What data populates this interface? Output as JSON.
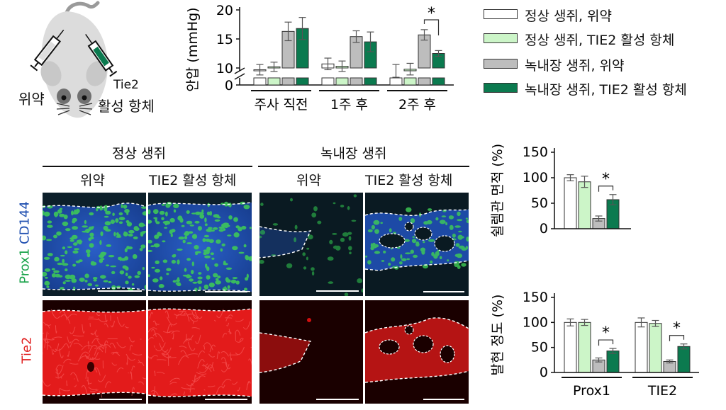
{
  "colors": {
    "placebo_normal": "#ffffff",
    "tie2_normal": "#ccf5c8",
    "placebo_glaucoma": "#bdbdbd",
    "tie2_glaucoma": "#0b7a4f",
    "prox1_green": "#19a34a",
    "cd144_blue": "#1f4fb0",
    "tie2_red": "#e01e1e"
  },
  "mouse_illustration": {
    "left_label": "위약",
    "right_label_line1": "Tie2",
    "right_label_line2": "활성 항체",
    "icons": [
      "mouse-icon",
      "syringe-icon",
      "syringe-icon"
    ]
  },
  "legend": [
    {
      "label": "정상 생쥐, 위약",
      "color_key": "placebo_normal"
    },
    {
      "label": "정상 생쥐, TIE2 활성 항체",
      "color_key": "tie2_normal"
    },
    {
      "label": "녹내장 생쥐, 위약",
      "color_key": "placebo_glaucoma"
    },
    {
      "label": "녹내장 생쥐, TIE2 활성 항체",
      "color_key": "tie2_glaucoma"
    }
  ],
  "micrograph_panel": {
    "group_headers": [
      "정상 생쥐",
      "녹내장 생쥐"
    ],
    "column_headers": [
      "위약",
      "TIE2 활성 항체",
      "위약",
      "TIE2 활성 항체"
    ],
    "row_labels": {
      "top_part1": "Prox1",
      "top_part2": "CD144",
      "bottom": "Tie2"
    }
  },
  "chart_data": [
    {
      "id": "iop",
      "type": "bar",
      "ylabel": "안압 (mmHg)",
      "ylim": [
        0,
        20
      ],
      "yticks": [
        0,
        10,
        15,
        20
      ],
      "axis_break": true,
      "categories": [
        "주사 직전",
        "1주 후",
        "2주 후"
      ],
      "series": [
        {
          "values": [
            9.7,
            10.7,
            9.5
          ],
          "errors": [
            0.9,
            1.0,
            1.1
          ],
          "color_key": "placebo_normal"
        },
        {
          "values": [
            10.2,
            10.3,
            9.8
          ],
          "errors": [
            0.8,
            0.9,
            1.0
          ],
          "color_key": "tie2_normal"
        },
        {
          "values": [
            16.3,
            15.4,
            15.7
          ],
          "errors": [
            1.6,
            1.0,
            0.9
          ],
          "color_key": "placebo_glaucoma"
        },
        {
          "values": [
            16.8,
            14.5,
            12.5
          ],
          "errors": [
            1.9,
            1.7,
            0.5
          ],
          "color_key": "tie2_glaucoma"
        }
      ],
      "significance": [
        {
          "category": "2주 후",
          "between": [
            2,
            3
          ],
          "label": "*"
        }
      ]
    },
    {
      "id": "vessel_area",
      "type": "bar",
      "ylabel": "쉴렘관 면적 (%)",
      "ylim": [
        0,
        150
      ],
      "yticks": [
        0,
        50,
        100,
        150
      ],
      "categories": [
        ""
      ],
      "series": [
        {
          "values": [
            100
          ],
          "errors": [
            6
          ],
          "color_key": "placebo_normal"
        },
        {
          "values": [
            92
          ],
          "errors": [
            11
          ],
          "color_key": "tie2_normal"
        },
        {
          "values": [
            20
          ],
          "errors": [
            5
          ],
          "color_key": "placebo_glaucoma"
        },
        {
          "values": [
            57
          ],
          "errors": [
            10
          ],
          "color_key": "tie2_glaucoma"
        }
      ],
      "significance": [
        {
          "category": "",
          "between": [
            2,
            3
          ],
          "label": "*"
        }
      ]
    },
    {
      "id": "expression",
      "type": "bar",
      "ylabel": "발현 정도 (%)",
      "ylim": [
        0,
        150
      ],
      "yticks": [
        0,
        50,
        100,
        150
      ],
      "categories": [
        "Prox1",
        "TIE2"
      ],
      "series": [
        {
          "values": [
            100,
            100
          ],
          "errors": [
            7,
            9
          ],
          "color_key": "placebo_normal"
        },
        {
          "values": [
            100,
            98
          ],
          "errors": [
            6,
            6
          ],
          "color_key": "tie2_normal"
        },
        {
          "values": [
            25,
            22
          ],
          "errors": [
            4,
            3
          ],
          "color_key": "placebo_glaucoma"
        },
        {
          "values": [
            43,
            52
          ],
          "errors": [
            5,
            5
          ],
          "color_key": "tie2_glaucoma"
        }
      ],
      "significance": [
        {
          "category": "Prox1",
          "between": [
            2,
            3
          ],
          "label": "*"
        },
        {
          "category": "TIE2",
          "between": [
            2,
            3
          ],
          "label": "*"
        }
      ]
    }
  ]
}
